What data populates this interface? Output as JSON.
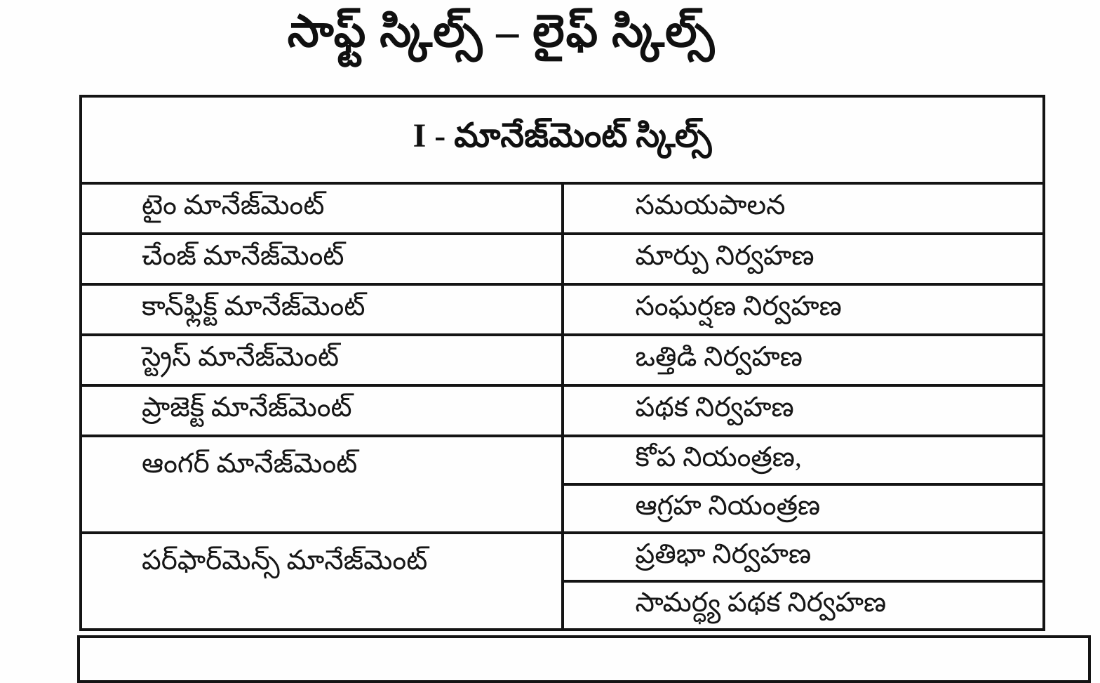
{
  "page": {
    "title": "సాఫ్ట్ స్కిల్స్ – లైఫ్ స్కిల్స్"
  },
  "table": {
    "header": "I - మానేజ్‌మెంట్ స్కిల్స్",
    "rows": [
      {
        "left": "టైం మానేజ్‌మెంట్",
        "right": [
          "సమయపాలన"
        ]
      },
      {
        "left": "చేంజ్ మానేజ్‌మెంట్",
        "right": [
          "మార్పు నిర్వహణ"
        ]
      },
      {
        "left": "కాన్‌ఫ్లిక్ట్ మానేజ్‌మెంట్",
        "right": [
          "సంఘర్షణ నిర్వహణ"
        ]
      },
      {
        "left": "స్ట్రెస్ మానేజ్‌మెంట్",
        "right": [
          "ఒత్తిడి నిర్వహణ"
        ]
      },
      {
        "left": "ప్రాజెక్ట్ మానేజ్‌మెంట్",
        "right": [
          "పథక నిర్వహణ"
        ]
      },
      {
        "left": "ఆంగర్ మానేజ్‌మెంట్",
        "right": [
          "కోప నియంత్రణ,",
          "ఆగ్రహ నియంత్రణ"
        ]
      },
      {
        "left": "పర్‌ఫార్‌మెన్స్ మానేజ్‌మెంట్",
        "right": [
          "ప్రతిభా నిర్వహణ",
          "సామర్ధ్య పథక నిర్వహణ"
        ]
      }
    ]
  },
  "colors": {
    "background": "#fefefe",
    "text": "#141414",
    "border": "#141414"
  }
}
